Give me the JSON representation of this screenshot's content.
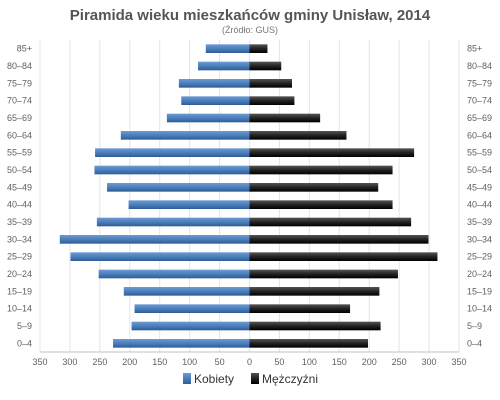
{
  "chart_data": {
    "type": "bar",
    "orientation": "horizontal-population-pyramid",
    "title": "Piramida wieku mieszkańców gminy Unisław, 2014",
    "subtitle": "(Źródło: GUS)",
    "categories": [
      "85+",
      "80–84",
      "75–79",
      "70–74",
      "65–69",
      "60–64",
      "55–59",
      "50–54",
      "45–49",
      "40–44",
      "35–39",
      "30–34",
      "25–29",
      "20–24",
      "15–19",
      "10–14",
      "5–9",
      "0–4"
    ],
    "series": [
      {
        "name": "Kobiety",
        "side": "left",
        "color": "#4a7ebb",
        "values": [
          73,
          86,
          118,
          114,
          138,
          215,
          258,
          259,
          238,
          202,
          255,
          317,
          299,
          252,
          210,
          192,
          197,
          228
        ]
      },
      {
        "name": "Mężczyźni",
        "side": "right",
        "color": "#222222",
        "values": [
          30,
          53,
          71,
          75,
          118,
          162,
          275,
          239,
          215,
          239,
          270,
          299,
          314,
          248,
          217,
          168,
          219,
          198
        ]
      }
    ],
    "xlim": [
      -350,
      350
    ],
    "x_ticks": [
      350,
      300,
      250,
      200,
      150,
      100,
      50,
      0,
      50,
      100,
      150,
      200,
      250,
      300,
      350
    ],
    "grid": true,
    "legend_position": "bottom-center"
  }
}
